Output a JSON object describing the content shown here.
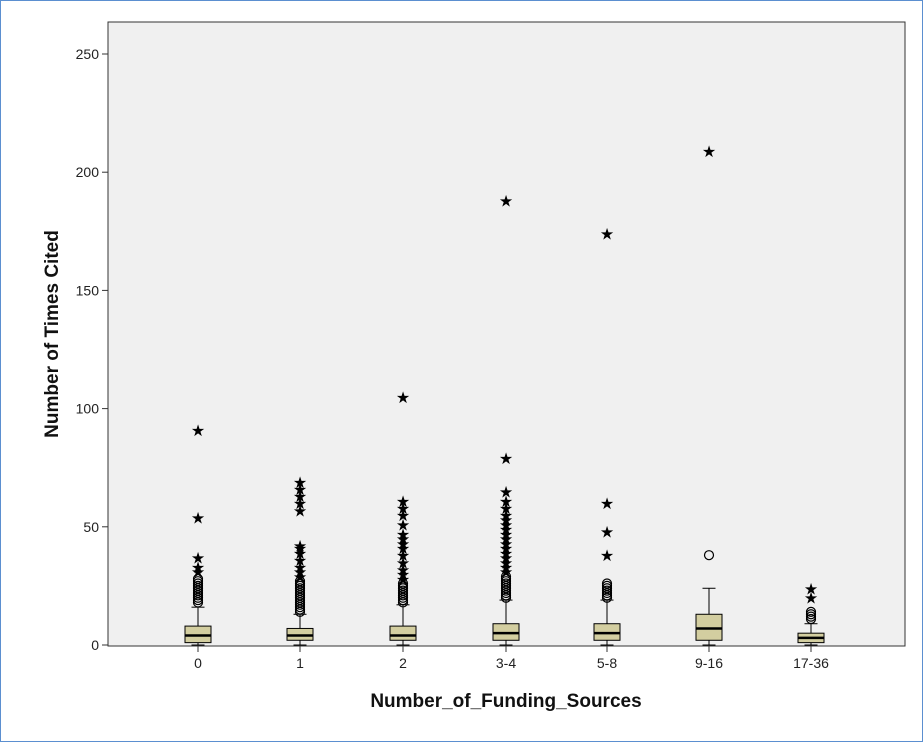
{
  "chart_data": {
    "type": "boxplot",
    "xlabel": "Number_of_Funding_Sources",
    "ylabel": "Number of Times Cited",
    "ylim": [
      0,
      260
    ],
    "yticks": [
      0,
      50,
      100,
      150,
      200,
      250
    ],
    "grid": false,
    "categories": [
      "0",
      "1",
      "2",
      "3-4",
      "5-8",
      "9-16",
      "17-36"
    ],
    "boxes": [
      {
        "category": "0",
        "min": 0,
        "q1": 1,
        "median": 4,
        "q3": 8,
        "max": 16,
        "outliers": [
          18,
          19,
          20,
          21,
          22,
          23,
          24,
          25,
          26,
          27,
          28
        ],
        "extremes": [
          31,
          33,
          37,
          54,
          91
        ]
      },
      {
        "category": "1",
        "min": 0,
        "q1": 2,
        "median": 4,
        "q3": 7,
        "max": 13,
        "outliers": [
          14,
          15,
          16,
          17,
          18,
          19,
          20,
          21,
          22,
          23,
          24,
          25,
          26,
          27
        ],
        "extremes": [
          29,
          31,
          33,
          36,
          39,
          41,
          42,
          57,
          60,
          63,
          66,
          69
        ]
      },
      {
        "category": "2",
        "min": 0,
        "q1": 2,
        "median": 4,
        "q3": 8,
        "max": 17,
        "outliers": [
          18,
          19,
          20,
          21,
          22,
          23,
          24,
          25,
          26
        ],
        "extremes": [
          28,
          30,
          32,
          35,
          38,
          41,
          43,
          45,
          47,
          51,
          55,
          58,
          61,
          105
        ]
      },
      {
        "category": "3-4",
        "min": 0,
        "q1": 2,
        "median": 5,
        "q3": 9,
        "max": 19,
        "outliers": [
          20,
          21,
          22,
          23,
          24,
          25,
          26,
          27,
          28,
          29
        ],
        "extremes": [
          31,
          33,
          35,
          37,
          39,
          41,
          43,
          45,
          47,
          49,
          51,
          53,
          55,
          58,
          61,
          65,
          79,
          188
        ]
      },
      {
        "category": "5-8",
        "min": 0,
        "q1": 2,
        "median": 5,
        "q3": 9,
        "max": 19,
        "outliers": [
          20,
          21,
          22,
          23,
          24,
          25,
          26
        ],
        "extremes": [
          38,
          48,
          60,
          174
        ]
      },
      {
        "category": "9-16",
        "min": 0,
        "q1": 2,
        "median": 7,
        "q3": 13,
        "max": 24,
        "outliers": [
          38
        ],
        "extremes": [
          209
        ]
      },
      {
        "category": "17-36",
        "min": 0,
        "q1": 1,
        "median": 3,
        "q3": 5,
        "max": 9,
        "outliers": [
          11,
          12,
          13,
          14
        ],
        "extremes": [
          20,
          24
        ]
      }
    ],
    "colors": {
      "box_fill": "#d3cea0",
      "plot_bg": "#f0f0f0",
      "frame": "#5b8fd0"
    }
  }
}
